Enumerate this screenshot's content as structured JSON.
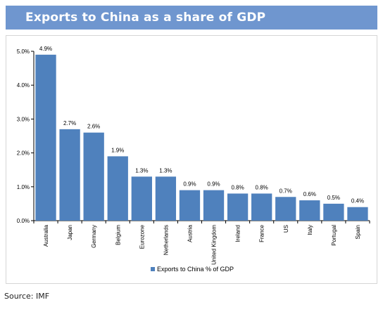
{
  "title": "Exports to China as a share of GDP",
  "source": "Source: IMF",
  "colors": {
    "title_bar": "#6f96cf",
    "bar": "#4f81bd"
  },
  "chart_data": {
    "type": "bar",
    "categories": [
      "Australia",
      "Japan",
      "Germany",
      "Belgium",
      "Eurozone",
      "Netherlands",
      "Austria",
      "United Kingdom",
      "Ireland",
      "France",
      "US",
      "Italy",
      "Portugal",
      "Spain"
    ],
    "series": [
      {
        "name": "Exports to China % of GDP",
        "values": [
          4.9,
          2.7,
          2.6,
          1.9,
          1.3,
          1.3,
          0.9,
          0.9,
          0.8,
          0.8,
          0.7,
          0.6,
          0.5,
          0.4
        ],
        "labels": [
          "4.9%",
          "2.7%",
          "2.6%",
          "1.9%",
          "1.3%",
          "1.3%",
          "0.9%",
          "0.9%",
          "0.8%",
          "0.8%",
          "0.7%",
          "0.6%",
          "0.5%",
          "0.4%"
        ]
      }
    ],
    "ylim": [
      0,
      5
    ],
    "yticks": [
      "0.0%",
      "1.0%",
      "2.0%",
      "3.0%",
      "4.0%",
      "5.0%"
    ],
    "grid": false,
    "legend_position": "bottom"
  }
}
